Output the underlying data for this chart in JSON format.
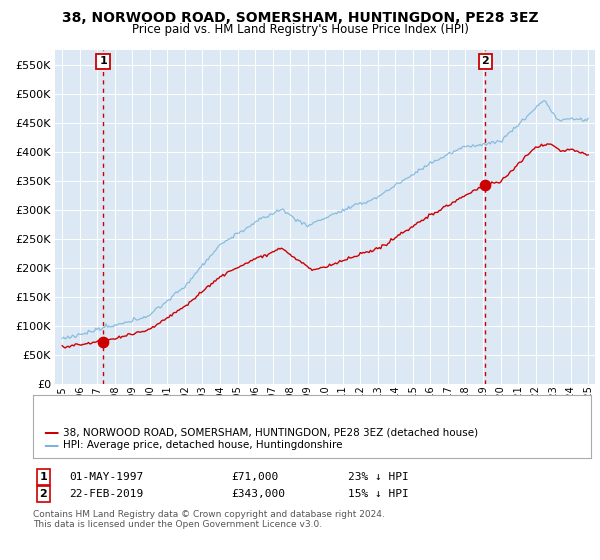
{
  "title1": "38, NORWOOD ROAD, SOMERSHAM, HUNTINGDON, PE28 3EZ",
  "title2": "Price paid vs. HM Land Registry's House Price Index (HPI)",
  "legend_line1": "38, NORWOOD ROAD, SOMERSHAM, HUNTINGDON, PE28 3EZ (detached house)",
  "legend_line2": "HPI: Average price, detached house, Huntingdonshire",
  "annotation1_label": "1",
  "annotation1_date": "01-MAY-1997",
  "annotation1_price": "£71,000",
  "annotation1_pct": "23% ↓ HPI",
  "annotation2_label": "2",
  "annotation2_date": "22-FEB-2019",
  "annotation2_price": "£343,000",
  "annotation2_pct": "15% ↓ HPI",
  "footnote1": "Contains HM Land Registry data © Crown copyright and database right 2024.",
  "footnote2": "This data is licensed under the Open Government Licence v3.0.",
  "sale1_year": 1997.33,
  "sale1_value": 71000,
  "sale2_year": 2019.14,
  "sale2_value": 343000,
  "ylim": [
    0,
    575000
  ],
  "yticks": [
    0,
    50000,
    100000,
    150000,
    200000,
    250000,
    300000,
    350000,
    400000,
    450000,
    500000,
    550000
  ],
  "xlim_start": 1994.6,
  "xlim_end": 2025.4,
  "bg_color": "#dce9f5",
  "hpi_color": "#7ab4d8",
  "price_color": "#cc0000",
  "vline_color": "#cc0000",
  "grid_color": "#ffffff",
  "xtick_years": [
    1995,
    1996,
    1997,
    1998,
    1999,
    2000,
    2001,
    2002,
    2003,
    2004,
    2005,
    2006,
    2007,
    2008,
    2009,
    2010,
    2011,
    2012,
    2013,
    2014,
    2015,
    2016,
    2017,
    2018,
    2019,
    2020,
    2021,
    2022,
    2023,
    2024,
    2025
  ]
}
